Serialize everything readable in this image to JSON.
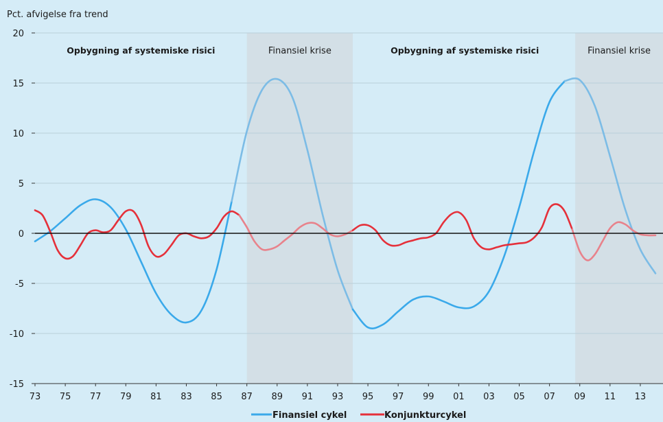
{
  "chart_data": {
    "type": "line",
    "ylabel": "Pct. afvigelse fra trend",
    "ylim": [
      -15,
      20
    ],
    "yticks": [
      -15,
      -10,
      -5,
      0,
      5,
      10,
      15,
      20
    ],
    "xlim": [
      1973,
      2014.5
    ],
    "xticks": [
      {
        "x": 1973,
        "label": "73"
      },
      {
        "x": 1975,
        "label": "75"
      },
      {
        "x": 1977,
        "label": "77"
      },
      {
        "x": 1979,
        "label": "79"
      },
      {
        "x": 1981,
        "label": "81"
      },
      {
        "x": 1983,
        "label": "83"
      },
      {
        "x": 1985,
        "label": "85"
      },
      {
        "x": 1987,
        "label": "87"
      },
      {
        "x": 1989,
        "label": "89"
      },
      {
        "x": 1991,
        "label": "91"
      },
      {
        "x": 1993,
        "label": "93"
      },
      {
        "x": 1995,
        "label": "95"
      },
      {
        "x": 1997,
        "label": "97"
      },
      {
        "x": 1999,
        "label": "99"
      },
      {
        "x": 2001,
        "label": "01"
      },
      {
        "x": 2003,
        "label": "03"
      },
      {
        "x": 2005,
        "label": "05"
      },
      {
        "x": 2007,
        "label": "07"
      },
      {
        "x": 2009,
        "label": "09"
      },
      {
        "x": 2011,
        "label": "11"
      },
      {
        "x": 2013,
        "label": "13"
      }
    ],
    "shaded_periods": [
      {
        "label": "Finansiel krise",
        "x_start": 1987.0,
        "x_end": 1994.0,
        "color": "#d3dfe6"
      },
      {
        "label": "Finansiel krise",
        "x_start": 2008.7,
        "x_end": 2014.5,
        "color": "#d3dfe6"
      }
    ],
    "period_labels": [
      {
        "text": "Opbygning af systemiske risici",
        "x": 1980.0,
        "bold": true
      },
      {
        "text": "Finansiel krise",
        "x": 1990.5,
        "bold": false
      },
      {
        "text": "Opbygning af systemiske risici",
        "x": 2001.4,
        "bold": true
      },
      {
        "text": "Finansiel krise",
        "x": 2011.6,
        "bold": false
      }
    ],
    "series": [
      {
        "name": "Finansiel cykel",
        "color": "#3aa9ea",
        "faded_color": "#7cbce6",
        "points": [
          [
            1973.0,
            -0.8
          ],
          [
            1974.0,
            0.2
          ],
          [
            1975.0,
            1.5
          ],
          [
            1976.0,
            2.8
          ],
          [
            1977.0,
            3.4
          ],
          [
            1978.0,
            2.6
          ],
          [
            1979.0,
            0.4
          ],
          [
            1980.0,
            -2.8
          ],
          [
            1981.0,
            -6.0
          ],
          [
            1982.0,
            -8.1
          ],
          [
            1983.0,
            -8.9
          ],
          [
            1984.0,
            -7.7
          ],
          [
            1985.0,
            -3.6
          ],
          [
            1986.0,
            3.2
          ],
          [
            1987.0,
            10.2
          ],
          [
            1988.0,
            14.3
          ],
          [
            1989.0,
            15.4
          ],
          [
            1990.0,
            13.6
          ],
          [
            1991.0,
            8.3
          ],
          [
            1992.0,
            1.9
          ],
          [
            1993.0,
            -3.7
          ],
          [
            1994.0,
            -7.6
          ],
          [
            1995.0,
            -9.4
          ],
          [
            1996.0,
            -9.1
          ],
          [
            1997.0,
            -7.8
          ],
          [
            1998.0,
            -6.6
          ],
          [
            1999.0,
            -6.3
          ],
          [
            2000.0,
            -6.8
          ],
          [
            2001.0,
            -7.4
          ],
          [
            2002.0,
            -7.3
          ],
          [
            2003.0,
            -5.8
          ],
          [
            2004.0,
            -2.3
          ],
          [
            2005.0,
            2.6
          ],
          [
            2006.0,
            8.3
          ],
          [
            2007.0,
            13.1
          ],
          [
            2008.0,
            15.2
          ],
          [
            2009.0,
            15.3
          ],
          [
            2010.0,
            12.7
          ],
          [
            2011.0,
            7.7
          ],
          [
            2012.0,
            2.4
          ],
          [
            2013.0,
            -1.6
          ],
          [
            2014.0,
            -4.0
          ]
        ]
      },
      {
        "name": "Konjunkturcykel",
        "color": "#e5303a",
        "faded_color": "#e8828b",
        "points": [
          [
            1973.0,
            2.3
          ],
          [
            1973.5,
            1.8
          ],
          [
            1974.0,
            0.2
          ],
          [
            1974.5,
            -1.7
          ],
          [
            1975.0,
            -2.5
          ],
          [
            1975.5,
            -2.3
          ],
          [
            1976.0,
            -1.2
          ],
          [
            1976.5,
            0.0
          ],
          [
            1977.0,
            0.3
          ],
          [
            1977.5,
            0.1
          ],
          [
            1978.0,
            0.3
          ],
          [
            1978.5,
            1.3
          ],
          [
            1979.0,
            2.2
          ],
          [
            1979.5,
            2.2
          ],
          [
            1980.0,
            0.9
          ],
          [
            1980.5,
            -1.3
          ],
          [
            1981.0,
            -2.3
          ],
          [
            1981.5,
            -2.1
          ],
          [
            1982.0,
            -1.2
          ],
          [
            1982.5,
            -0.2
          ],
          [
            1983.0,
            0.0
          ],
          [
            1983.5,
            -0.3
          ],
          [
            1984.0,
            -0.5
          ],
          [
            1984.5,
            -0.3
          ],
          [
            1985.0,
            0.5
          ],
          [
            1985.5,
            1.7
          ],
          [
            1986.0,
            2.2
          ],
          [
            1986.5,
            1.8
          ],
          [
            1987.0,
            0.6
          ],
          [
            1987.5,
            -0.8
          ],
          [
            1988.0,
            -1.6
          ],
          [
            1988.5,
            -1.6
          ],
          [
            1989.0,
            -1.3
          ],
          [
            1989.5,
            -0.7
          ],
          [
            1990.0,
            -0.1
          ],
          [
            1990.5,
            0.6
          ],
          [
            1991.0,
            1.0
          ],
          [
            1991.5,
            1.0
          ],
          [
            1992.0,
            0.5
          ],
          [
            1992.5,
            -0.1
          ],
          [
            1993.0,
            -0.3
          ],
          [
            1993.5,
            -0.1
          ],
          [
            1994.0,
            0.3
          ],
          [
            1994.5,
            0.8
          ],
          [
            1995.0,
            0.8
          ],
          [
            1995.5,
            0.3
          ],
          [
            1996.0,
            -0.7
          ],
          [
            1996.5,
            -1.2
          ],
          [
            1997.0,
            -1.2
          ],
          [
            1997.5,
            -0.9
          ],
          [
            1998.0,
            -0.7
          ],
          [
            1998.5,
            -0.5
          ],
          [
            1999.0,
            -0.4
          ],
          [
            1999.5,
            0.0
          ],
          [
            2000.0,
            1.1
          ],
          [
            2000.5,
            1.9
          ],
          [
            2001.0,
            2.1
          ],
          [
            2001.5,
            1.3
          ],
          [
            2002.0,
            -0.5
          ],
          [
            2002.5,
            -1.4
          ],
          [
            2003.0,
            -1.6
          ],
          [
            2003.5,
            -1.4
          ],
          [
            2004.0,
            -1.2
          ],
          [
            2004.5,
            -1.1
          ],
          [
            2005.0,
            -1.0
          ],
          [
            2005.5,
            -0.9
          ],
          [
            2006.0,
            -0.4
          ],
          [
            2006.5,
            0.6
          ],
          [
            2007.0,
            2.5
          ],
          [
            2007.5,
            2.9
          ],
          [
            2008.0,
            2.2
          ],
          [
            2008.5,
            0.4
          ],
          [
            2009.0,
            -1.8
          ],
          [
            2009.5,
            -2.7
          ],
          [
            2010.0,
            -2.1
          ],
          [
            2010.5,
            -0.8
          ],
          [
            2011.0,
            0.5
          ],
          [
            2011.5,
            1.1
          ],
          [
            2012.0,
            0.9
          ],
          [
            2012.5,
            0.3
          ],
          [
            2013.0,
            -0.1
          ],
          [
            2013.5,
            -0.2
          ],
          [
            2014.0,
            -0.2
          ]
        ]
      }
    ]
  },
  "legend": [
    {
      "label": "Finansiel cykel",
      "color": "#3aa9ea"
    },
    {
      "label": "Konjunkturcykel",
      "color": "#e5303a"
    }
  ]
}
